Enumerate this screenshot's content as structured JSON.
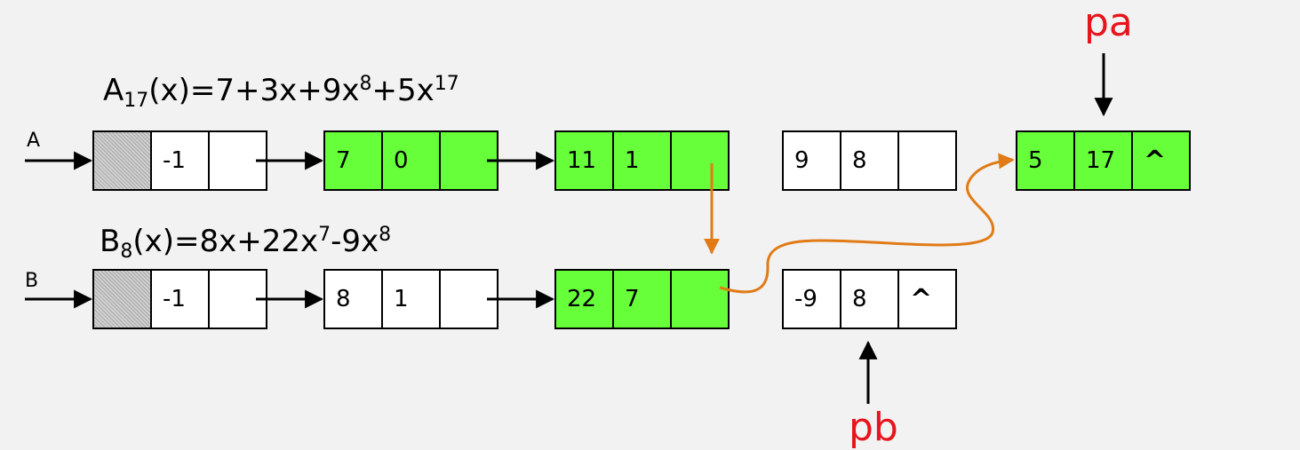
{
  "equations": {
    "a": {
      "name": "A",
      "sub": "17",
      "rest": "(x)=7+3x+9x",
      "exp1": "8",
      "mid": "+5x",
      "exp2": "17"
    },
    "b": {
      "name": "B",
      "sub": "8",
      "rest": "(x)=8x+22x",
      "exp1": "7",
      "mid": "-9x",
      "exp2": "8"
    }
  },
  "row_labels": {
    "a": "A",
    "b": "B"
  },
  "pointers": {
    "pa": "pa",
    "pb": "pb"
  },
  "list_a": {
    "head": {
      "coef": "-1"
    },
    "n1": {
      "coef": "7",
      "exp": "0"
    },
    "n2": {
      "coef": "11",
      "exp": "1"
    },
    "n3": {
      "coef": "9",
      "exp": "8"
    },
    "n4": {
      "coef": "5",
      "exp": "17",
      "link": "^"
    }
  },
  "list_b": {
    "head": {
      "coef": "-1"
    },
    "n1": {
      "coef": "8",
      "exp": "1"
    },
    "n2": {
      "coef": "22",
      "exp": "7"
    },
    "n3": {
      "coef": "-9",
      "exp": "8",
      "link": "^"
    }
  },
  "colors": {
    "highlight": "#66ff3a",
    "link": "#e07b16",
    "pointer": "#e8141b"
  }
}
